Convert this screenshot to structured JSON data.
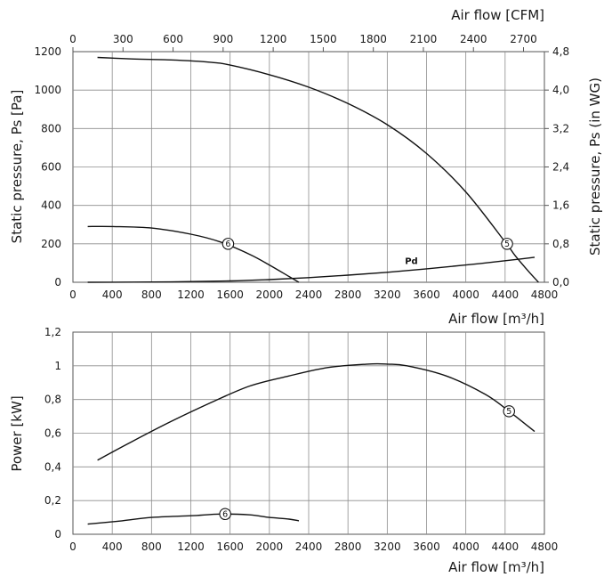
{
  "chart_data": [
    {
      "type": "line",
      "name": "pressure",
      "xlabel": "Air flow [m³/h]",
      "ylabel": "Static pressure, Ps [Pa]",
      "top_xlabel": "Air flow [CFM]",
      "right_ylabel": "Static pressure, Ps (in WG)",
      "xlim": [
        0,
        4800
      ],
      "ylim": [
        0,
        1200
      ],
      "x_ticks": [
        0,
        400,
        800,
        1200,
        1600,
        2000,
        2400,
        2800,
        3200,
        3600,
        4000,
        4400,
        4800
      ],
      "y_ticks": [
        0,
        200,
        400,
        600,
        800,
        1000,
        1200
      ],
      "top_ticks": [
        0,
        300,
        600,
        900,
        1200,
        1500,
        1800,
        2100,
        2400,
        2700
      ],
      "right_ticks": [
        "0,0",
        "0,8",
        "1,6",
        "2,4",
        "3,2",
        "4,0",
        "4,8"
      ],
      "grid": true,
      "series": [
        {
          "name": "5",
          "x": [
            250,
            600,
            1000,
            1400,
            1600,
            2000,
            2400,
            2800,
            3200,
            3600,
            4000,
            4400,
            4500,
            4650,
            4740
          ],
          "y": [
            1170,
            1162,
            1157,
            1145,
            1130,
            1080,
            1015,
            930,
            820,
            670,
            470,
            210,
            140,
            50,
            0
          ]
        },
        {
          "name": "6",
          "x": [
            150,
            400,
            800,
            1200,
            1500,
            1800,
            2000,
            2200,
            2300
          ],
          "y": [
            290,
            290,
            282,
            250,
            210,
            145,
            90,
            30,
            0
          ]
        },
        {
          "name": "Pd",
          "x": [
            150,
            1000,
            1600,
            2000,
            2400,
            2800,
            3200,
            3600,
            4000,
            4400,
            4700
          ],
          "y": [
            0,
            2,
            7,
            14,
            24,
            37,
            52,
            70,
            90,
            112,
            130
          ]
        }
      ],
      "markers": [
        {
          "label": "6",
          "x": 1580,
          "y": 200
        },
        {
          "label": "5",
          "x": 4420,
          "y": 200
        }
      ],
      "annotations": [
        {
          "text": "Pd",
          "x": 3380,
          "y": 95
        }
      ]
    },
    {
      "type": "line",
      "name": "power",
      "xlabel": "Air flow [m³/h]",
      "ylabel": "Power [kW]",
      "xlim": [
        0,
        4800
      ],
      "ylim": [
        0,
        1.2
      ],
      "x_ticks": [
        0,
        400,
        800,
        1200,
        1600,
        2000,
        2400,
        2800,
        3200,
        3600,
        4000,
        4400,
        4800
      ],
      "y_ticks": [
        "0",
        "0,2",
        "0,4",
        "0,6",
        "0,8",
        "1",
        "1,2"
      ],
      "grid": true,
      "series": [
        {
          "name": "5",
          "x": [
            250,
            600,
            1000,
            1400,
            1800,
            2200,
            2600,
            3000,
            3200,
            3400,
            3800,
            4200,
            4440,
            4700
          ],
          "y": [
            0.44,
            0.55,
            0.67,
            0.78,
            0.88,
            0.94,
            0.99,
            1.01,
            1.01,
            1.0,
            0.94,
            0.83,
            0.73,
            0.61
          ]
        },
        {
          "name": "6",
          "x": [
            150,
            500,
            800,
            1200,
            1500,
            1800,
            2000,
            2200,
            2300
          ],
          "y": [
            0.06,
            0.08,
            0.1,
            0.11,
            0.12,
            0.115,
            0.1,
            0.09,
            0.08
          ]
        }
      ],
      "markers": [
        {
          "label": "6",
          "x": 1550,
          "y": 0.12
        },
        {
          "label": "5",
          "x": 4440,
          "y": 0.73
        }
      ]
    }
  ]
}
